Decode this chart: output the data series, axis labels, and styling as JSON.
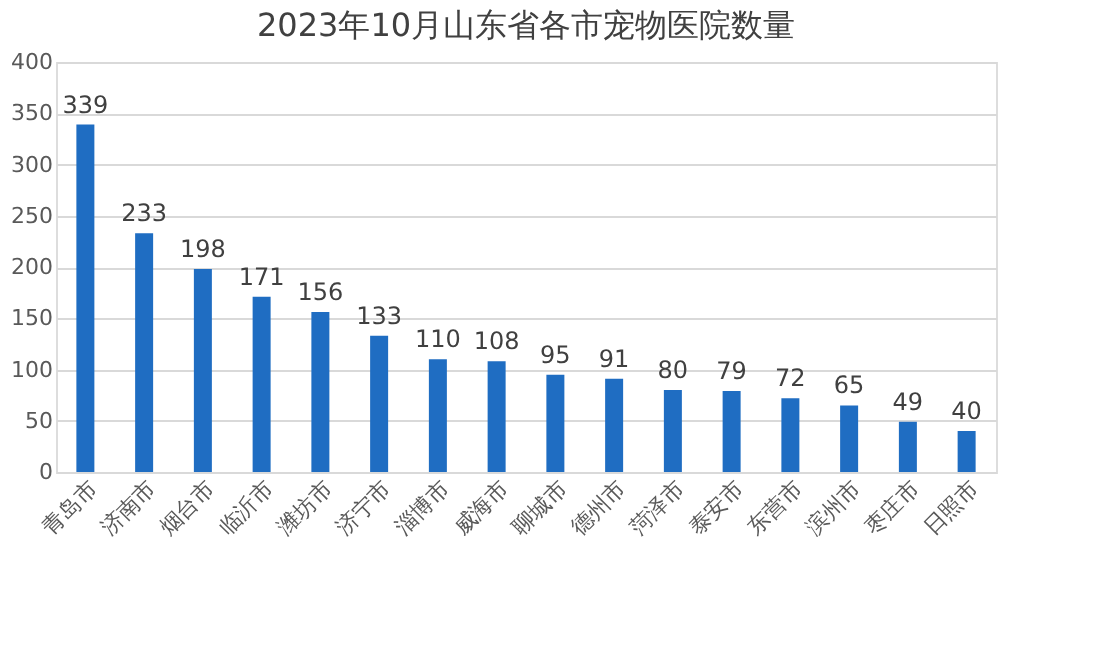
{
  "chart_data": {
    "type": "bar",
    "title": "2023年10月山东省各市宠物医院数量",
    "categories": [
      "青岛市",
      "济南市",
      "烟台市",
      "临沂市",
      "潍坊市",
      "济宁市",
      "淄博市",
      "威海市",
      "聊城市",
      "德州市",
      "菏泽市",
      "泰安市",
      "东营市",
      "滨州市",
      "枣庄市",
      "日照市"
    ],
    "values": [
      339,
      233,
      198,
      171,
      156,
      133,
      110,
      108,
      95,
      91,
      80,
      79,
      72,
      65,
      49,
      40
    ],
    "color": "#1f6dc2",
    "ylim": [
      0,
      400
    ],
    "yticks": [
      0,
      50,
      100,
      150,
      200,
      250,
      300,
      350,
      400
    ],
    "grid": "y",
    "data_labels": true
  }
}
